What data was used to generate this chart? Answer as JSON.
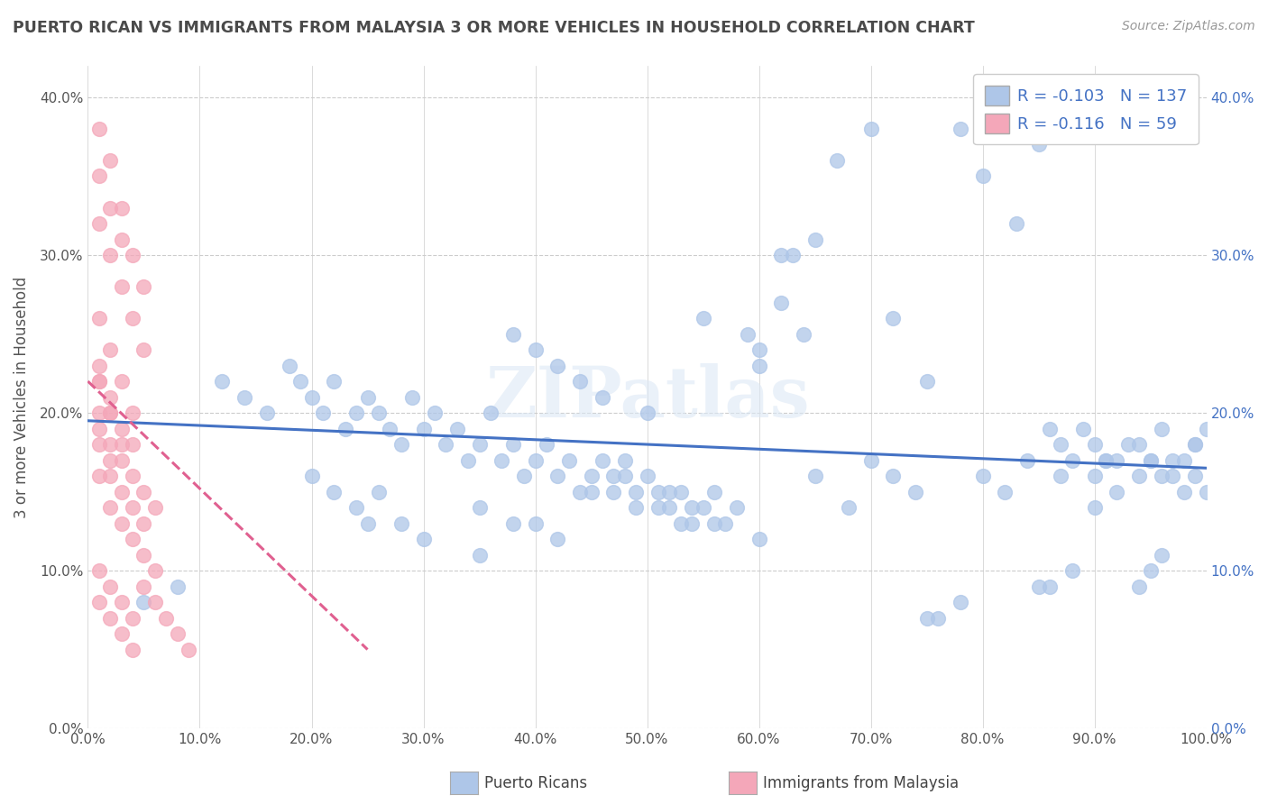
{
  "title": "PUERTO RICAN VS IMMIGRANTS FROM MALAYSIA 3 OR MORE VEHICLES IN HOUSEHOLD CORRELATION CHART",
  "source": "Source: ZipAtlas.com",
  "ylabel": "3 or more Vehicles in Household",
  "xlim": [
    0.0,
    1.0
  ],
  "ylim": [
    0.0,
    0.42
  ],
  "x_ticks": [
    0.0,
    0.1,
    0.2,
    0.3,
    0.4,
    0.5,
    0.6,
    0.7,
    0.8,
    0.9,
    1.0
  ],
  "x_tick_labels": [
    "0.0%",
    "10.0%",
    "20.0%",
    "30.0%",
    "40.0%",
    "50.0%",
    "60.0%",
    "70.0%",
    "80.0%",
    "90.0%",
    "100.0%"
  ],
  "y_ticks": [
    0.0,
    0.1,
    0.2,
    0.3,
    0.4
  ],
  "y_tick_labels": [
    "0.0%",
    "10.0%",
    "20.0%",
    "30.0%",
    "40.0%"
  ],
  "legend_entries": [
    {
      "label": "Puerto Ricans",
      "color": "#aec6e8",
      "R": "-0.103",
      "N": "137"
    },
    {
      "label": "Immigrants from Malaysia",
      "color": "#f4a7b9",
      "R": "-0.116",
      "N": "59"
    }
  ],
  "blue_scatter_x": [
    0.05,
    0.08,
    0.12,
    0.14,
    0.16,
    0.18,
    0.19,
    0.2,
    0.21,
    0.22,
    0.23,
    0.24,
    0.25,
    0.26,
    0.27,
    0.28,
    0.29,
    0.3,
    0.31,
    0.32,
    0.33,
    0.34,
    0.35,
    0.36,
    0.37,
    0.38,
    0.39,
    0.4,
    0.41,
    0.42,
    0.43,
    0.44,
    0.45,
    0.46,
    0.47,
    0.48,
    0.49,
    0.5,
    0.51,
    0.52,
    0.53,
    0.54,
    0.55,
    0.56,
    0.57,
    0.58,
    0.59,
    0.6,
    0.62,
    0.63,
    0.65,
    0.67,
    0.7,
    0.72,
    0.75,
    0.78,
    0.8,
    0.83,
    0.85,
    0.86,
    0.87,
    0.88,
    0.89,
    0.9,
    0.91,
    0.92,
    0.93,
    0.94,
    0.95,
    0.96,
    0.97,
    0.98,
    0.99,
    0.55,
    0.42,
    0.25,
    0.3,
    0.35,
    0.4,
    0.2,
    0.22,
    0.24,
    0.26,
    0.28,
    0.48,
    0.5,
    0.52,
    0.54,
    0.56,
    0.6,
    0.35,
    0.38,
    0.45,
    0.47,
    0.49,
    0.51,
    0.53,
    0.38,
    0.4,
    0.42,
    0.44,
    0.46,
    0.62,
    0.64,
    0.68,
    0.7,
    0.72,
    0.74,
    0.76,
    0.78,
    0.8,
    0.82,
    0.84,
    0.86,
    0.88,
    0.9,
    0.92,
    0.94,
    0.95,
    0.96,
    0.97,
    0.98,
    0.99,
    1.0,
    0.6,
    0.65,
    0.75,
    0.85,
    0.9,
    0.95,
    0.99,
    1.0,
    0.87,
    0.91,
    0.94,
    0.96
  ],
  "blue_scatter_y": [
    0.08,
    0.09,
    0.22,
    0.21,
    0.2,
    0.23,
    0.22,
    0.21,
    0.2,
    0.22,
    0.19,
    0.2,
    0.21,
    0.2,
    0.19,
    0.18,
    0.21,
    0.19,
    0.2,
    0.18,
    0.19,
    0.17,
    0.18,
    0.2,
    0.17,
    0.18,
    0.16,
    0.17,
    0.18,
    0.16,
    0.17,
    0.15,
    0.16,
    0.17,
    0.15,
    0.16,
    0.14,
    0.2,
    0.15,
    0.14,
    0.15,
    0.13,
    0.14,
    0.15,
    0.13,
    0.14,
    0.25,
    0.24,
    0.27,
    0.3,
    0.31,
    0.36,
    0.38,
    0.26,
    0.22,
    0.38,
    0.35,
    0.32,
    0.37,
    0.19,
    0.18,
    0.17,
    0.19,
    0.18,
    0.17,
    0.17,
    0.18,
    0.16,
    0.17,
    0.16,
    0.17,
    0.15,
    0.16,
    0.26,
    0.12,
    0.13,
    0.12,
    0.11,
    0.13,
    0.16,
    0.15,
    0.14,
    0.15,
    0.13,
    0.17,
    0.16,
    0.15,
    0.14,
    0.13,
    0.12,
    0.14,
    0.13,
    0.15,
    0.16,
    0.15,
    0.14,
    0.13,
    0.25,
    0.24,
    0.23,
    0.22,
    0.21,
    0.3,
    0.25,
    0.14,
    0.17,
    0.16,
    0.15,
    0.07,
    0.08,
    0.16,
    0.15,
    0.17,
    0.09,
    0.1,
    0.16,
    0.15,
    0.09,
    0.1,
    0.11,
    0.16,
    0.17,
    0.18,
    0.15,
    0.23,
    0.16,
    0.07,
    0.09,
    0.14,
    0.17,
    0.18,
    0.19,
    0.16,
    0.17,
    0.18,
    0.19
  ],
  "pink_scatter_x": [
    0.01,
    0.02,
    0.03,
    0.04,
    0.05,
    0.01,
    0.02,
    0.03,
    0.04,
    0.05,
    0.01,
    0.02,
    0.01,
    0.02,
    0.03,
    0.01,
    0.02,
    0.03,
    0.04,
    0.01,
    0.02,
    0.03,
    0.01,
    0.02,
    0.03,
    0.01,
    0.02,
    0.04,
    0.01,
    0.02,
    0.03,
    0.04,
    0.05,
    0.06,
    0.01,
    0.02,
    0.03,
    0.04,
    0.05,
    0.01,
    0.02,
    0.03,
    0.04,
    0.01,
    0.02,
    0.03,
    0.04,
    0.05,
    0.06,
    0.01,
    0.02,
    0.03,
    0.04,
    0.05,
    0.06,
    0.07,
    0.08,
    0.09
  ],
  "pink_scatter_y": [
    0.38,
    0.36,
    0.33,
    0.3,
    0.28,
    0.32,
    0.3,
    0.28,
    0.26,
    0.24,
    0.22,
    0.2,
    0.35,
    0.33,
    0.31,
    0.26,
    0.24,
    0.22,
    0.2,
    0.22,
    0.2,
    0.18,
    0.23,
    0.21,
    0.19,
    0.2,
    0.18,
    0.18,
    0.19,
    0.17,
    0.17,
    0.16,
    0.15,
    0.14,
    0.18,
    0.16,
    0.15,
    0.14,
    0.13,
    0.16,
    0.14,
    0.13,
    0.12,
    0.1,
    0.09,
    0.08,
    0.07,
    0.11,
    0.1,
    0.08,
    0.07,
    0.06,
    0.05,
    0.09,
    0.08,
    0.07,
    0.06,
    0.05
  ],
  "blue_line_x": [
    0.0,
    1.0
  ],
  "blue_line_y": [
    0.195,
    0.165
  ],
  "pink_line_x": [
    0.0,
    0.25
  ],
  "pink_line_y": [
    0.22,
    0.05
  ],
  "watermark": "ZIPatlas",
  "background_color": "#ffffff",
  "grid_color": "#cccccc",
  "title_color": "#4a4a4a",
  "blue_color": "#aec6e8",
  "pink_color": "#f4a7b9",
  "blue_line_color": "#4472c4",
  "pink_line_color": "#e06090",
  "bottom_legend": [
    {
      "label": "Puerto Ricans",
      "color": "#aec6e8"
    },
    {
      "label": "Immigrants from Malaysia",
      "color": "#f4a7b9"
    }
  ]
}
